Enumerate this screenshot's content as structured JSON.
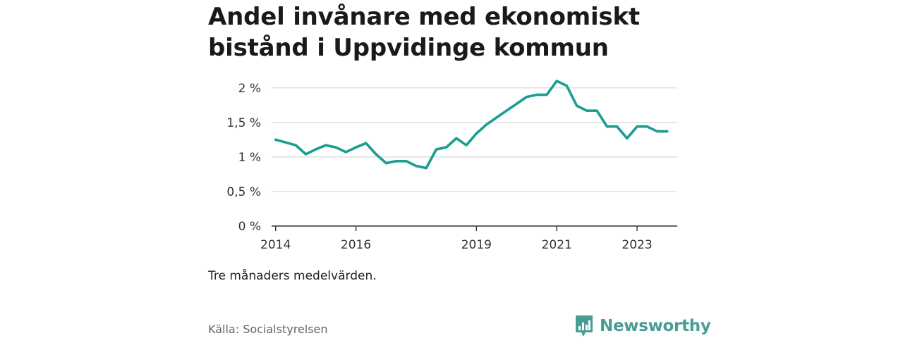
{
  "title": "Andel invånare med ekonomiskt bistånd i Uppvidinge kommun",
  "note": "Tre månaders medelvärden.",
  "source": "Källa: Socialstyrelsen",
  "brand": {
    "name": "Newsworthy",
    "icon": "newsworthy-logo-icon",
    "color": "#4a9d95"
  },
  "chart_data": {
    "type": "line",
    "line_color": "#1a9e92",
    "grid": true,
    "ylim": [
      0,
      2.1
    ],
    "y_ticks": [
      {
        "value": 0,
        "label": "0 %"
      },
      {
        "value": 0.5,
        "label": "0,5 %"
      },
      {
        "value": 1,
        "label": "1 %"
      },
      {
        "value": 1.5,
        "label": "1,5 %"
      },
      {
        "value": 2,
        "label": "2 %"
      }
    ],
    "x_ticks": [
      {
        "value": 2014,
        "label": "2014"
      },
      {
        "value": 2016,
        "label": "2016"
      },
      {
        "value": 2019,
        "label": "2019"
      },
      {
        "value": 2021,
        "label": "2021"
      },
      {
        "value": 2023,
        "label": "2023"
      }
    ],
    "xlim": [
      2013.9,
      2024.0
    ],
    "series": [
      {
        "x": [
          2014.0,
          2014.5,
          2014.75,
          2015.0,
          2015.25,
          2015.5,
          2015.75,
          2016.0,
          2016.25,
          2016.5,
          2016.75,
          2017.0,
          2017.25,
          2017.5,
          2017.75,
          2018.0,
          2018.25,
          2018.5,
          2018.75,
          2019.0,
          2019.25,
          2019.5,
          2019.75,
          2020.0,
          2020.25,
          2020.5,
          2020.75,
          2021.0,
          2021.25,
          2021.5,
          2021.75,
          2022.0,
          2022.25,
          2022.5,
          2022.75,
          2023.0,
          2023.25,
          2023.5,
          2023.75
        ],
        "values": [
          1.25,
          1.17,
          1.04,
          1.11,
          1.17,
          1.14,
          1.07,
          1.14,
          1.2,
          1.04,
          0.91,
          0.94,
          0.94,
          0.87,
          0.84,
          1.11,
          1.14,
          1.27,
          1.17,
          1.34,
          1.47,
          1.57,
          1.67,
          1.77,
          1.87,
          1.9,
          1.9,
          2.1,
          2.03,
          1.74,
          1.67,
          1.67,
          1.44,
          1.44,
          1.27,
          1.44,
          1.44,
          1.37,
          1.37
        ]
      }
    ]
  }
}
